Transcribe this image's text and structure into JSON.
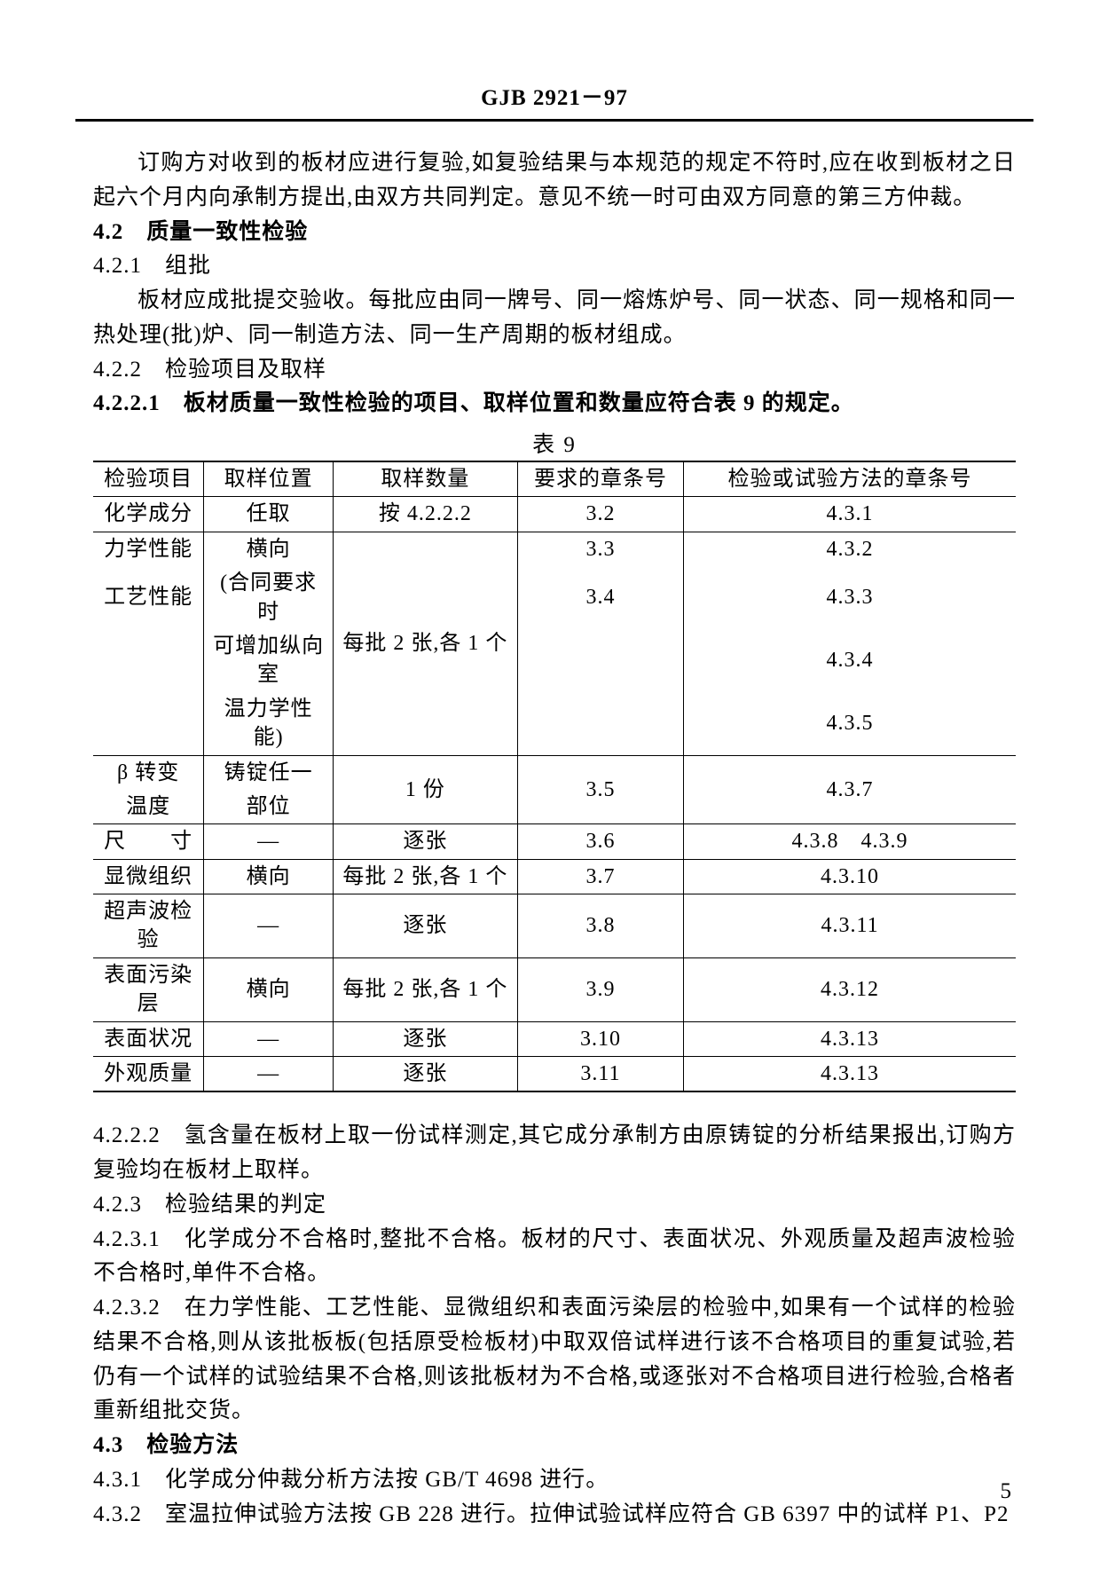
{
  "header": {
    "title": "GJB 2921－97"
  },
  "paragraphs": {
    "p1": "订购方对收到的板材应进行复验,如复验结果与本规范的规定不符时,应在收到板材之日起六个月内向承制方提出,由双方共同判定。意见不统一时可由双方同意的第三方仲裁。",
    "s42_num": "4.2",
    "s42_title": "质量一致性检验",
    "s421_num": "4.2.1",
    "s421_title": "组批",
    "p421": "板材应成批提交验收。每批应由同一牌号、同一熔炼炉号、同一状态、同一规格和同一热处理(批)炉、同一制造方法、同一生产周期的板材组成。",
    "s422_num": "4.2.2",
    "s422_title": "检验项目及取样",
    "s4221_num": "4.2.2.1",
    "s4221_title": "板材质量一致性检验的项目、取样位置和数量应符合表 9 的规定。",
    "table_label": "表 9",
    "s4222_num": "4.2.2.2",
    "s4222_text": "氢含量在板材上取一份试样测定,其它成分承制方由原铸锭的分析结果报出,订购方复验均在板材上取样。",
    "s423_num": "4.2.3",
    "s423_title": "检验结果的判定",
    "s4231_num": "4.2.3.1",
    "s4231_text": "化学成分不合格时,整批不合格。板材的尺寸、表面状况、外观质量及超声波检验不合格时,单件不合格。",
    "s4232_num": "4.2.3.2",
    "s4232_text": "在力学性能、工艺性能、显微组织和表面污染层的检验中,如果有一个试样的检验结果不合格,则从该批板板(包括原受检板材)中取双倍试样进行该不合格项目的重复试验,若仍有一个试样的试验结果不合格,则该批板材为不合格,或逐张对不合格项目进行检验,合格者重新组批交货。",
    "s43_num": "4.3",
    "s43_title": "检验方法",
    "s431_num": "4.3.1",
    "s431_text": "化学成分仲裁分析方法按 GB/T 4698 进行。",
    "s432_num": "4.3.2",
    "s432_text": "室温拉伸试验方法按 GB 228 进行。拉伸试验试样应符合 GB 6397 中的试样 P1、P2"
  },
  "table": {
    "columns": [
      "检验项目",
      "取样位置",
      "取样数量",
      "要求的章条号",
      "检验或试验方法的章条号"
    ],
    "rows": [
      [
        "化学成分",
        "任取",
        "按 4.2.2.2",
        "3.2",
        "4.3.1"
      ],
      [
        "力学性能",
        "横向",
        "每批 2 张,各 1 个",
        "3.3",
        "4.3.2"
      ],
      [
        "工艺性能",
        "(合同要求时",
        "",
        "3.4",
        "4.3.3"
      ],
      [
        "",
        "可增加纵向室",
        "",
        "",
        "4.3.4"
      ],
      [
        "",
        "温力学性能)",
        "",
        "",
        "4.3.5"
      ],
      [
        "β 转变",
        "铸锭任一",
        "1 份",
        "3.5",
        "4.3.7"
      ],
      [
        "温度",
        "部位",
        "",
        "",
        ""
      ],
      [
        "尺　　寸",
        "—",
        "逐张",
        "3.6",
        "4.3.8　4.3.9"
      ],
      [
        "显微组织",
        "横向",
        "每批 2 张,各 1 个",
        "3.7",
        "4.3.10"
      ],
      [
        "超声波检验",
        "—",
        "逐张",
        "3.8",
        "4.3.11"
      ],
      [
        "表面污染层",
        "横向",
        "每批 2 张,各 1 个",
        "3.9",
        "4.3.12"
      ],
      [
        "表面状况",
        "—",
        "逐张",
        "3.10",
        "4.3.13"
      ],
      [
        "外观质量",
        "—",
        "逐张",
        "3.11",
        "4.3.13"
      ]
    ]
  },
  "page_number": "5",
  "colors": {
    "text": "#000000",
    "bg": "#ffffff",
    "border": "#000000"
  }
}
